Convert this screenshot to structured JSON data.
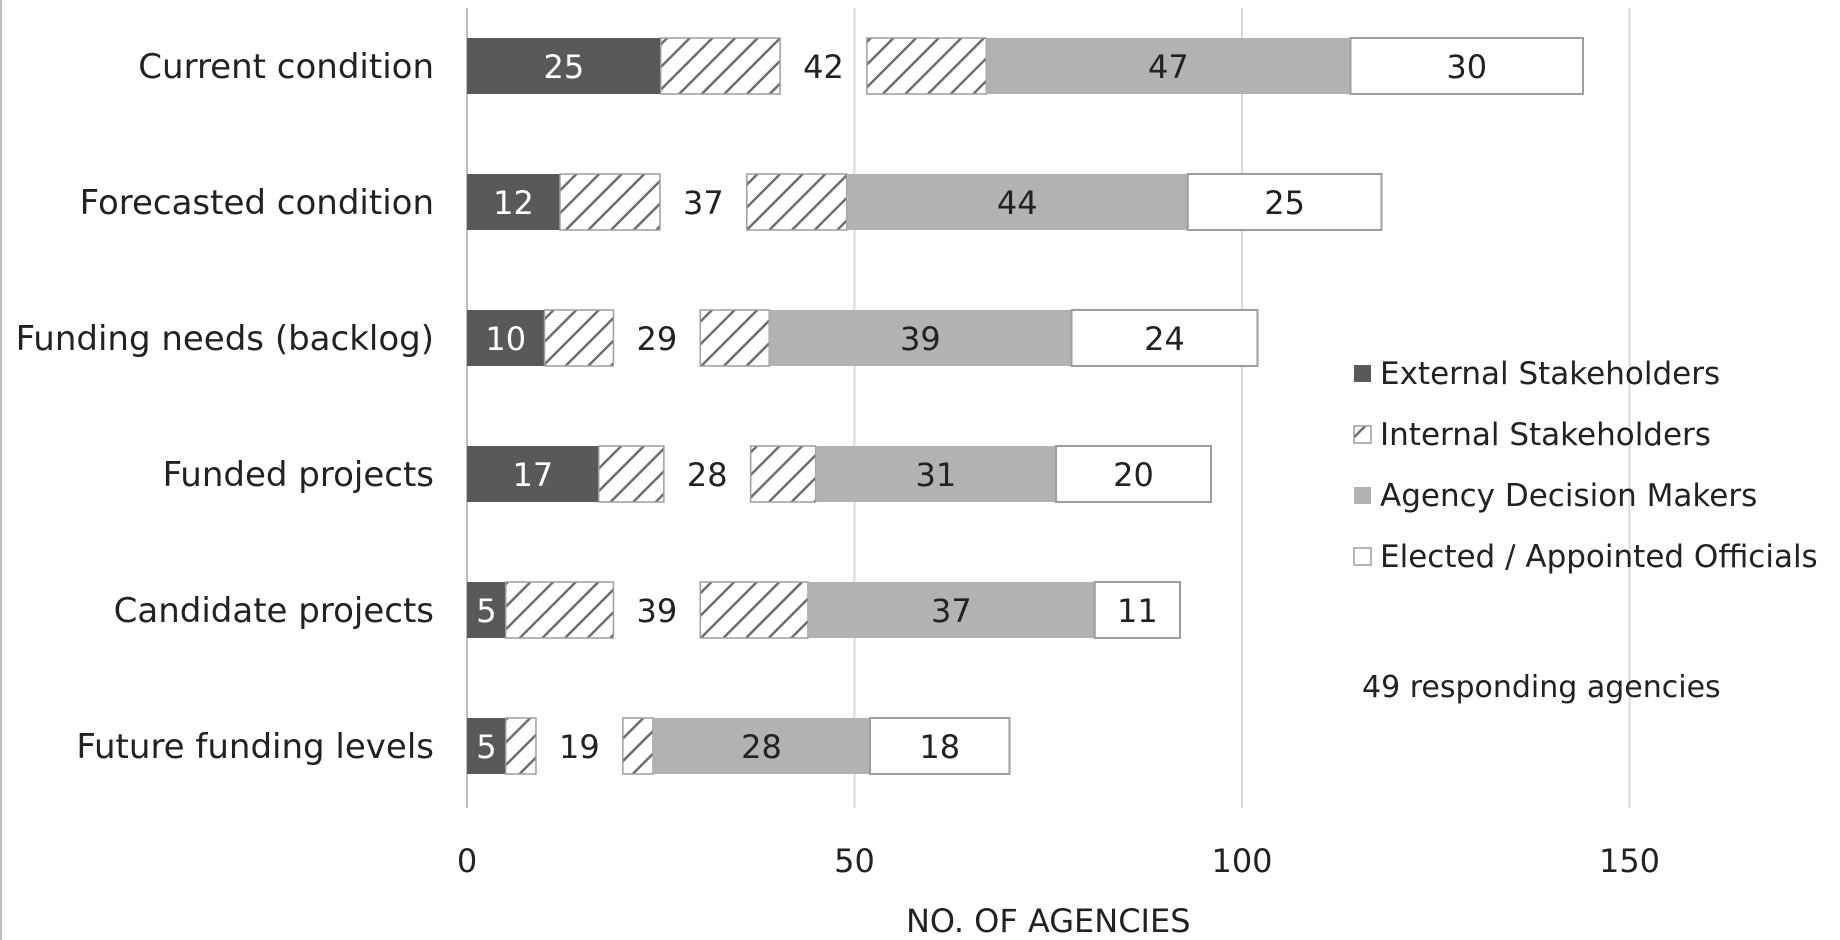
{
  "chart_data": {
    "type": "bar",
    "orientation": "horizontal",
    "stacked": true,
    "categories": [
      "Current condition",
      "Forecasted condition",
      "Funding needs (backlog)",
      "Funded projects",
      "Candidate projects",
      "Future funding levels"
    ],
    "series": [
      {
        "name": "External Stakeholders",
        "values": [
          25,
          12,
          10,
          17,
          5,
          5
        ],
        "color": "#595959",
        "pattern": "solid"
      },
      {
        "name": "Internal Stakeholders",
        "values": [
          42,
          37,
          29,
          28,
          39,
          19
        ],
        "color": "#ffffff",
        "pattern": "hatched"
      },
      {
        "name": "Agency Decision Makers",
        "values": [
          47,
          44,
          39,
          31,
          37,
          28
        ],
        "color": "#b2b2b2",
        "pattern": "solid"
      },
      {
        "name": "Elected / Appointed Officials",
        "values": [
          30,
          25,
          24,
          20,
          11,
          18
        ],
        "color": "#ffffff",
        "pattern": "solid"
      }
    ],
    "xlabel": "NO. OF AGENCIES",
    "ylabel": "",
    "xlim": [
      0,
      175
    ],
    "xticks": [
      0,
      50,
      100,
      150
    ],
    "grid": true,
    "legend_position": "right",
    "annotation": "49 responding agencies"
  }
}
